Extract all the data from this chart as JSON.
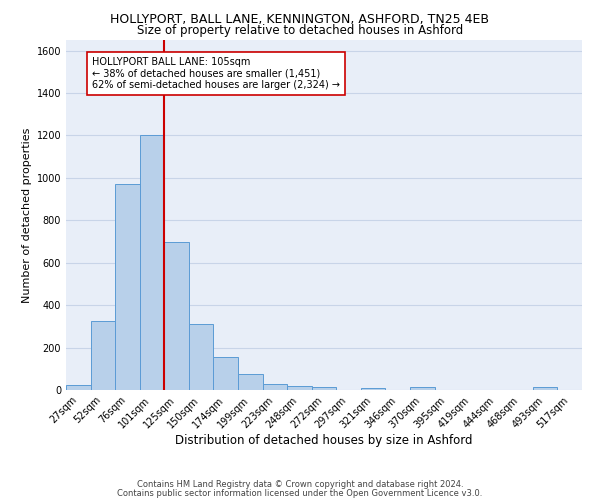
{
  "title": "HOLLYPORT, BALL LANE, KENNINGTON, ASHFORD, TN25 4EB",
  "subtitle": "Size of property relative to detached houses in Ashford",
  "xlabel": "Distribution of detached houses by size in Ashford",
  "ylabel": "Number of detached properties",
  "bar_labels": [
    "27sqm",
    "52sqm",
    "76sqm",
    "101sqm",
    "125sqm",
    "150sqm",
    "174sqm",
    "199sqm",
    "223sqm",
    "248sqm",
    "272sqm",
    "297sqm",
    "321sqm",
    "346sqm",
    "370sqm",
    "395sqm",
    "419sqm",
    "444sqm",
    "468sqm",
    "493sqm",
    "517sqm"
  ],
  "bar_values": [
    25,
    325,
    970,
    1200,
    700,
    310,
    155,
    75,
    30,
    18,
    12,
    0,
    10,
    0,
    13,
    0,
    0,
    0,
    0,
    12,
    0
  ],
  "bar_color": "#b8d0ea",
  "bar_edge_color": "#5b9bd5",
  "bar_width": 1.0,
  "grid_color": "#c8d4e8",
  "background_color": "#e8eef8",
  "vline_color": "#cc0000",
  "annotation_text": "HOLLYPORT BALL LANE: 105sqm\n← 38% of detached houses are smaller (1,451)\n62% of semi-detached houses are larger (2,324) →",
  "annotation_box_color": "#ffffff",
  "annotation_box_edge": "#cc0000",
  "ylim": [
    0,
    1650
  ],
  "yticks": [
    0,
    200,
    400,
    600,
    800,
    1000,
    1200,
    1400,
    1600
  ],
  "footnote_line1": "Contains HM Land Registry data © Crown copyright and database right 2024.",
  "footnote_line2": "Contains public sector information licensed under the Open Government Licence v3.0.",
  "title_fontsize": 9,
  "subtitle_fontsize": 8.5,
  "xlabel_fontsize": 8.5,
  "ylabel_fontsize": 8,
  "tick_fontsize": 7,
  "annotation_fontsize": 7,
  "footnote_fontsize": 6
}
